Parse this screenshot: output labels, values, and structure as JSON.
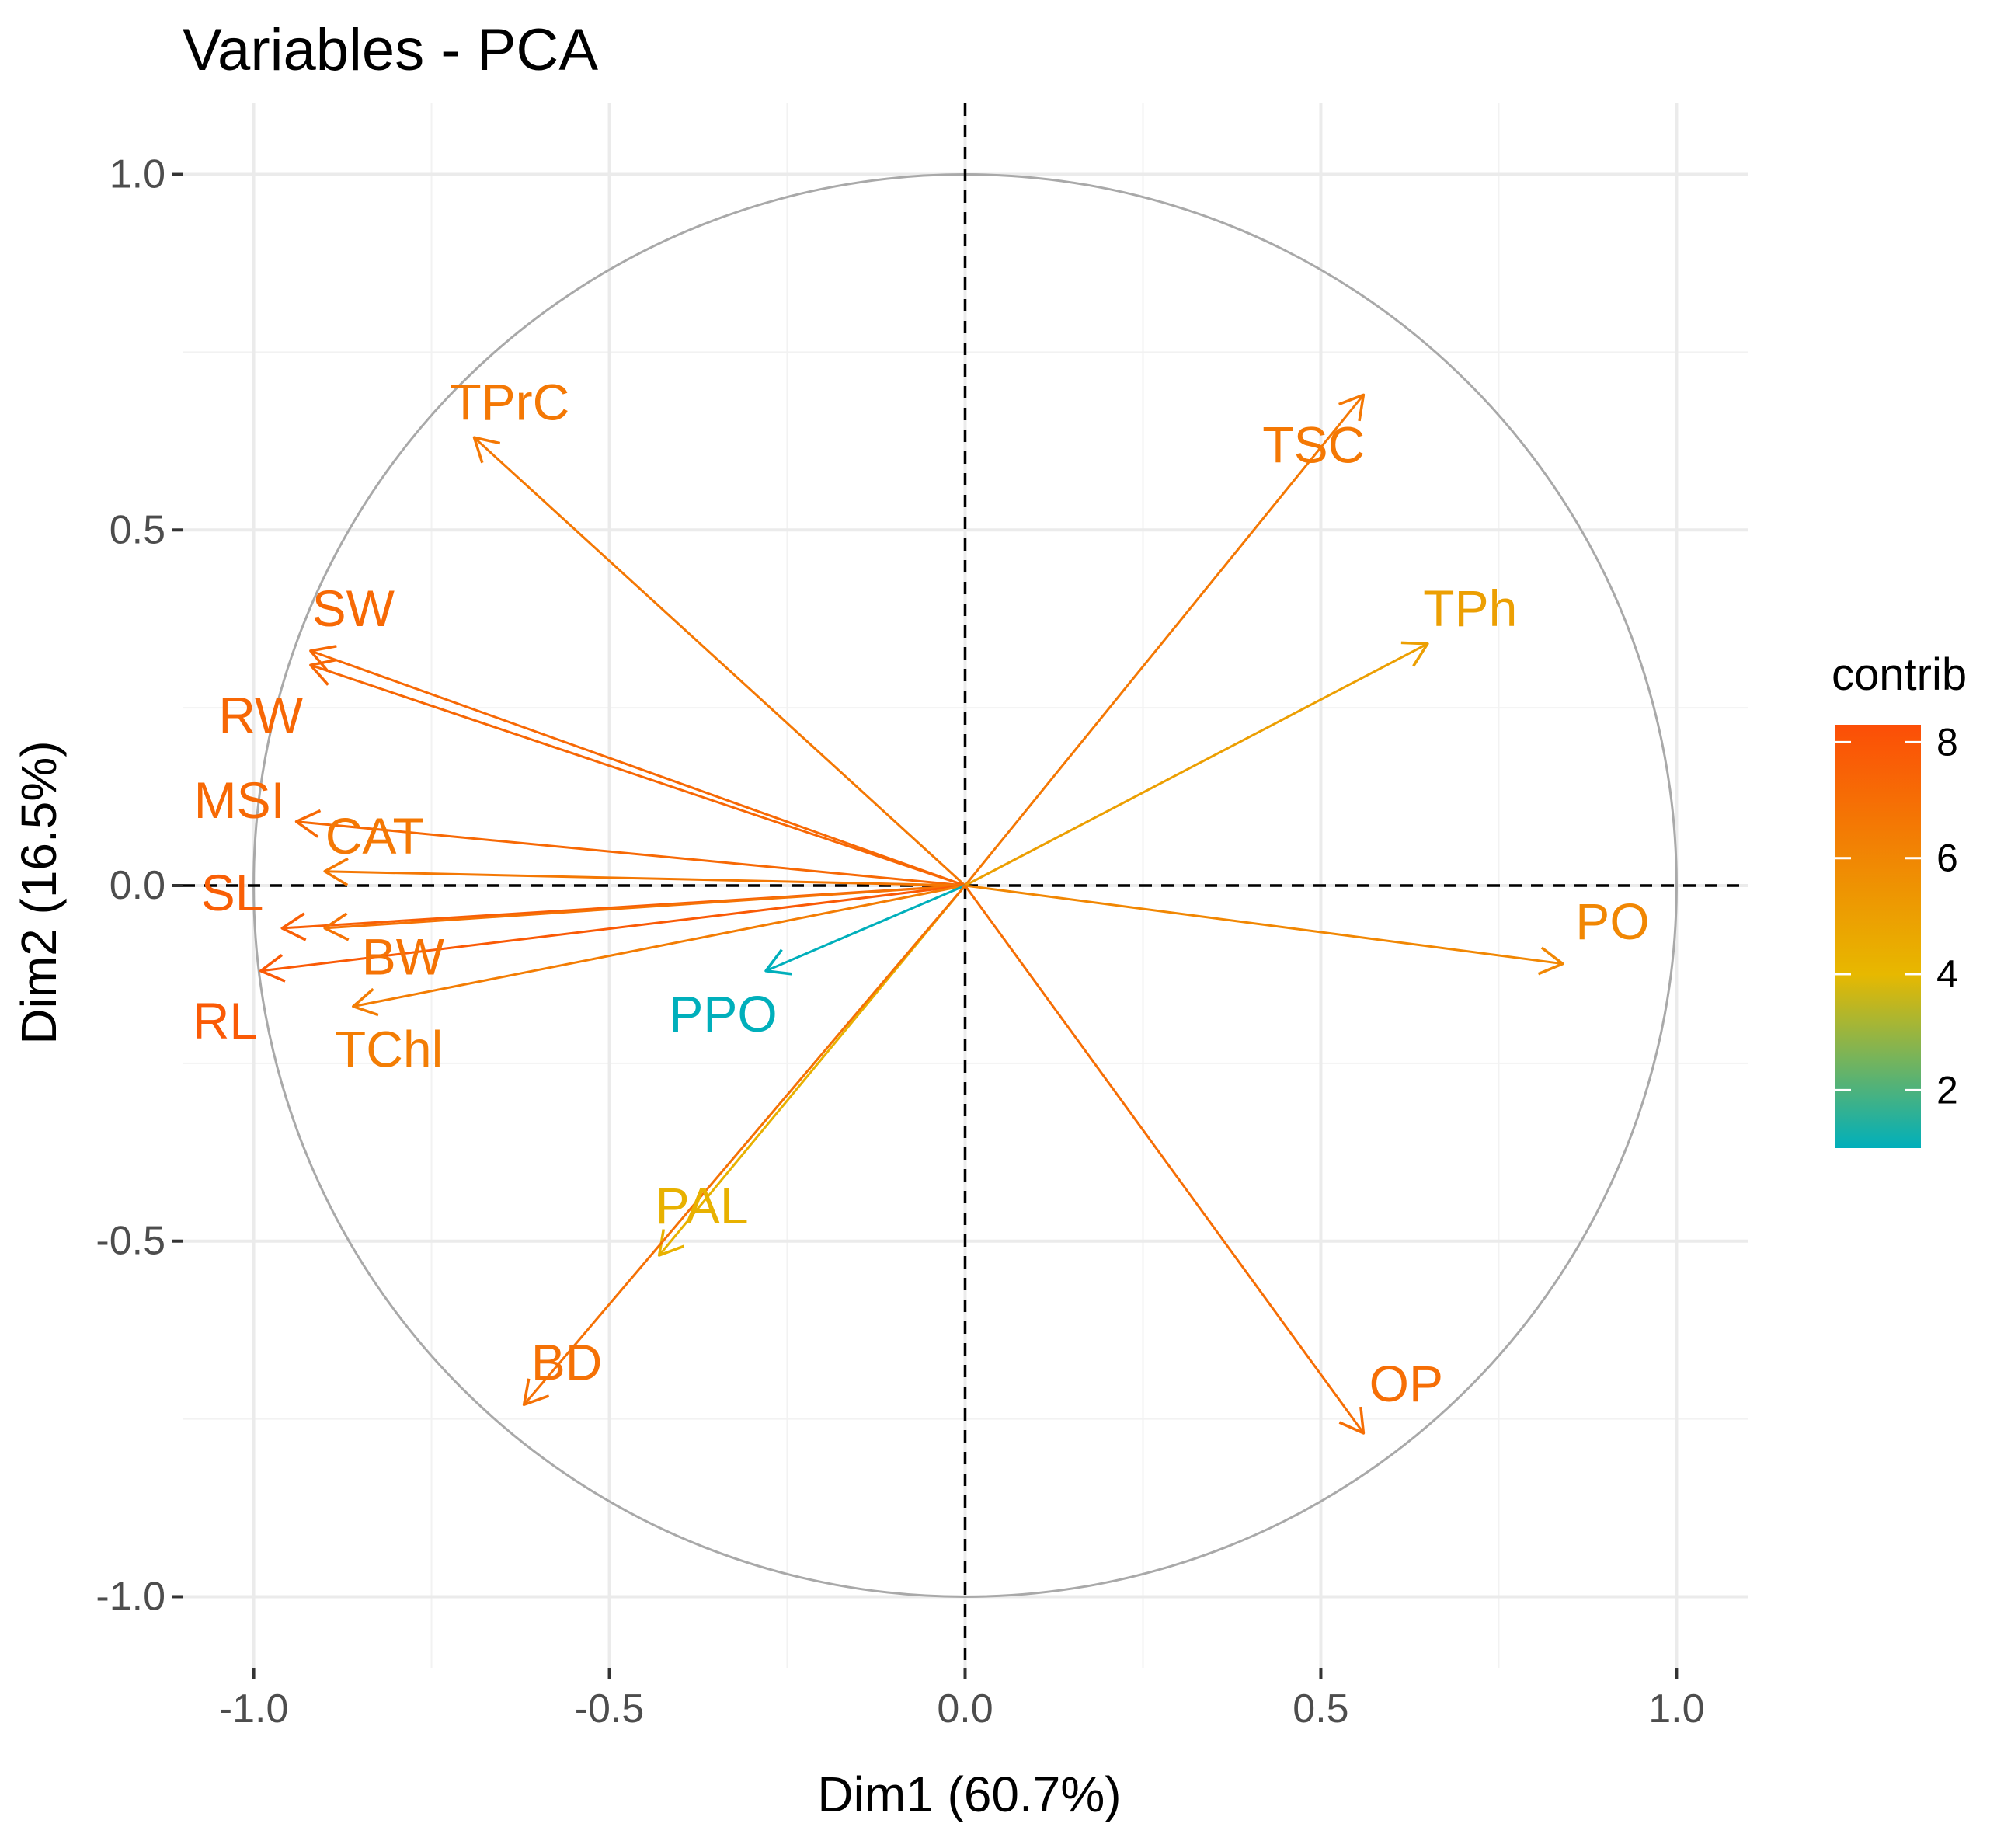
{
  "chart_data": {
    "type": "scatter",
    "subtype": "pca-variable-correlation-circle",
    "title": "Variables - PCA",
    "xlabel": "Dim1 (60.7%)",
    "ylabel": "Dim2 (16.5%)",
    "xlim": [
      -1.1,
      1.1
    ],
    "ylim": [
      -1.1,
      1.1
    ],
    "xticks": [
      {
        "value": -1.0,
        "label": "-1.0"
      },
      {
        "value": -0.5,
        "label": "-0.5"
      },
      {
        "value": 0.0,
        "label": "0.0"
      },
      {
        "value": 0.5,
        "label": "0.5"
      },
      {
        "value": 1.0,
        "label": "1.0"
      }
    ],
    "yticks": [
      {
        "value": 1.0,
        "label": "1.0"
      },
      {
        "value": 0.5,
        "label": "0.5"
      },
      {
        "value": 0.0,
        "label": "0.0"
      },
      {
        "value": -0.5,
        "label": "-0.5"
      },
      {
        "value": -1.0,
        "label": "-1.0"
      }
    ],
    "grid": true,
    "unit_circle": true,
    "reference_lines": [
      "x = 0",
      "y = 0"
    ],
    "color_legend": {
      "title": "contrib",
      "placement": "right",
      "range": [
        1,
        8.3
      ],
      "ticks": [
        {
          "value": 8,
          "label": "8"
        },
        {
          "value": 6,
          "label": "6"
        },
        {
          "value": 4,
          "label": "4"
        },
        {
          "value": 2,
          "label": "2"
        }
      ],
      "stops": [
        {
          "value": 1,
          "color": "#00afbb"
        },
        {
          "value": 4,
          "color": "#e7b800"
        },
        {
          "value": 8.3,
          "color": "#fc4e07"
        }
      ]
    },
    "variables": [
      {
        "name": "TPrC",
        "x": -0.69,
        "y": 0.63,
        "contrib": 6.6,
        "label_x": -0.64,
        "label_y": 0.68
      },
      {
        "name": "TSC",
        "x": 0.56,
        "y": 0.69,
        "contrib": 6.6,
        "label_x": 0.49,
        "label_y": 0.62
      },
      {
        "name": "TPh",
        "x": 0.65,
        "y": 0.34,
        "contrib": 5.0,
        "label_x": 0.71,
        "label_y": 0.39
      },
      {
        "name": "SW",
        "x": -0.92,
        "y": 0.33,
        "contrib": 7.2,
        "label_x": -0.86,
        "label_y": 0.39
      },
      {
        "name": "RW",
        "x": -0.92,
        "y": 0.31,
        "contrib": 7.3,
        "label_x": -0.99,
        "label_y": 0.24
      },
      {
        "name": "MSI",
        "x": -0.94,
        "y": 0.09,
        "contrib": 7.2,
        "label_x": -1.02,
        "label_y": 0.12
      },
      {
        "name": "CAT",
        "x": -0.9,
        "y": 0.02,
        "contrib": 6.6,
        "label_x": -0.83,
        "label_y": 0.07
      },
      {
        "name": "SL",
        "x": -0.96,
        "y": -0.06,
        "contrib": 7.6,
        "label_x": -1.03,
        "label_y": -0.01
      },
      {
        "name": "BW",
        "x": -0.9,
        "y": -0.06,
        "contrib": 6.8,
        "label_x": -0.79,
        "label_y": -0.1
      },
      {
        "name": "RL",
        "x": -0.99,
        "y": -0.12,
        "contrib": 7.8,
        "label_x": -1.04,
        "label_y": -0.19
      },
      {
        "name": "TChl",
        "x": -0.86,
        "y": -0.17,
        "contrib": 6.4,
        "label_x": -0.81,
        "label_y": -0.23
      },
      {
        "name": "PPO",
        "x": -0.28,
        "y": -0.12,
        "contrib": 1.0,
        "label_x": -0.34,
        "label_y": -0.18
      },
      {
        "name": "PO",
        "x": 0.84,
        "y": -0.11,
        "contrib": 6.0,
        "label_x": 0.91,
        "label_y": -0.05
      },
      {
        "name": "PAL",
        "x": -0.43,
        "y": -0.52,
        "contrib": 4.3,
        "label_x": -0.37,
        "label_y": -0.45
      },
      {
        "name": "BD",
        "x": -0.62,
        "y": -0.73,
        "contrib": 6.9,
        "label_x": -0.56,
        "label_y": -0.67
      },
      {
        "name": "OP",
        "x": 0.56,
        "y": -0.77,
        "contrib": 7.0,
        "label_x": 0.62,
        "label_y": -0.7
      }
    ]
  }
}
